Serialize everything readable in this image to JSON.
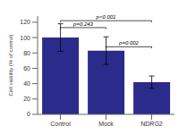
{
  "chart_data": {
    "type": "bar",
    "categories": [
      "Control",
      "Mock",
      "NDRG2"
    ],
    "values": [
      100,
      83,
      42
    ],
    "errors": [
      18,
      18,
      8
    ],
    "color": "#2B2B8C",
    "ylabel": "Cell viability (% of control)",
    "ylim": [
      0,
      128
    ],
    "yticks": [
      0,
      20,
      40,
      60,
      80,
      100,
      120
    ],
    "grid": false,
    "annotations": [
      {
        "from": "Control",
        "to": "Mock",
        "y": 113,
        "label": "p=0.243",
        "label_y": 114.5
      },
      {
        "from": "Mock",
        "to": "NDRG2",
        "y": 88,
        "label": "p=0.002",
        "label_y": 89.5
      },
      {
        "from": "Control",
        "to": "NDRG2",
        "y": 122,
        "label": "p<0.001",
        "label_y": 123.2
      }
    ]
  }
}
